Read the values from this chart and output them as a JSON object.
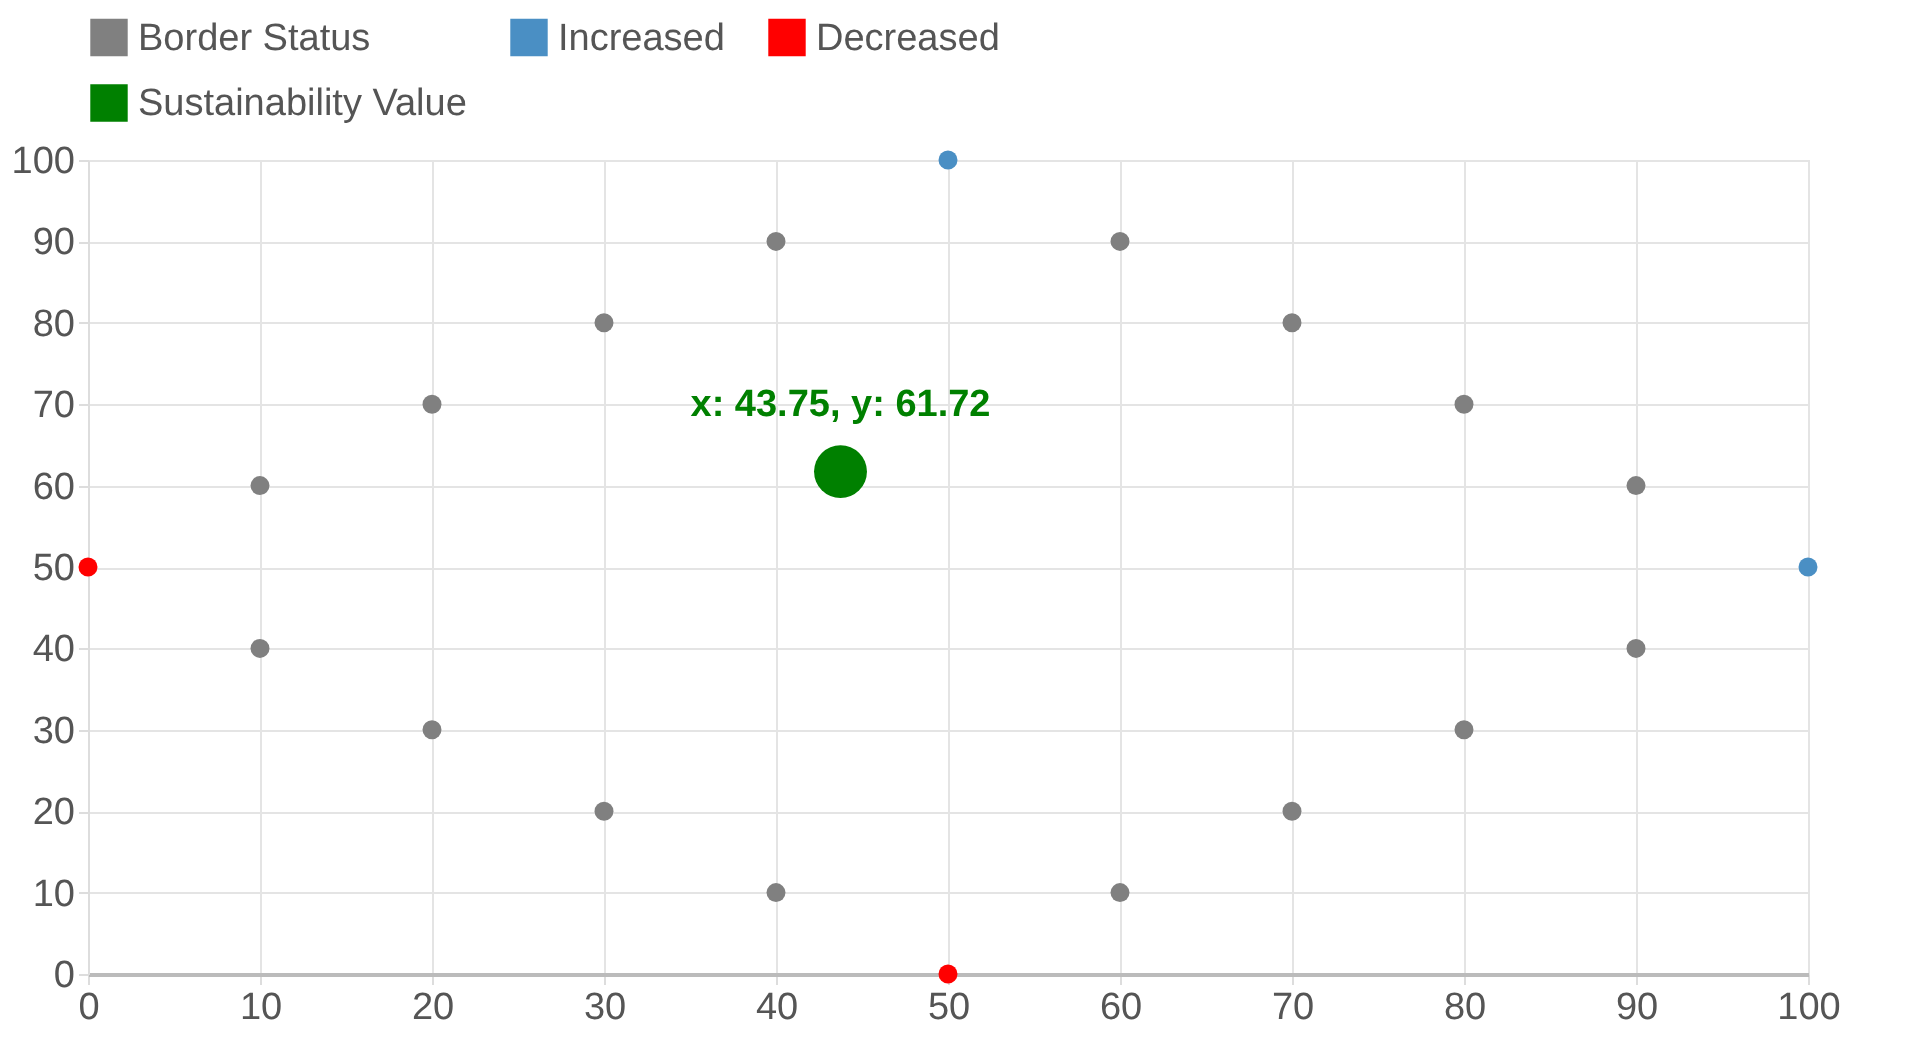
{
  "chart_data": {
    "type": "scatter",
    "legend": "top",
    "grid": true,
    "marker": "circle",
    "xlim": [
      0,
      100
    ],
    "xticks": [
      0,
      10,
      20,
      30,
      40,
      50,
      60,
      70,
      80,
      90,
      100
    ],
    "ylim": [
      0,
      100
    ],
    "yticks": [
      0,
      10,
      20,
      30,
      40,
      50,
      60,
      70,
      80,
      90,
      100
    ],
    "series": [
      {
        "name": "Border Status",
        "color": "#808080",
        "x": [
          10,
          20,
          30,
          40,
          60,
          70,
          80,
          90,
          10,
          20,
          30,
          40,
          60,
          70,
          80,
          90
        ],
        "values": [
          60,
          70,
          80,
          90,
          90,
          80,
          70,
          60,
          40,
          30,
          20,
          10,
          10,
          20,
          30,
          40
        ]
      },
      {
        "name": "Increased",
        "color": "#4a8fc4",
        "x": [
          50,
          100
        ],
        "values": [
          100,
          50
        ]
      },
      {
        "name": "Decreased",
        "color": "#ff0000",
        "x": [
          0,
          50
        ],
        "values": [
          50,
          0
        ]
      },
      {
        "name": "Sustainability Value",
        "color": "#008000",
        "x": [
          43.75
        ],
        "values": [
          61.72
        ]
      }
    ],
    "annotations": [
      {
        "text": "x: 43.75, y: 61.72",
        "x": 43.75,
        "y": 61.72
      }
    ]
  }
}
